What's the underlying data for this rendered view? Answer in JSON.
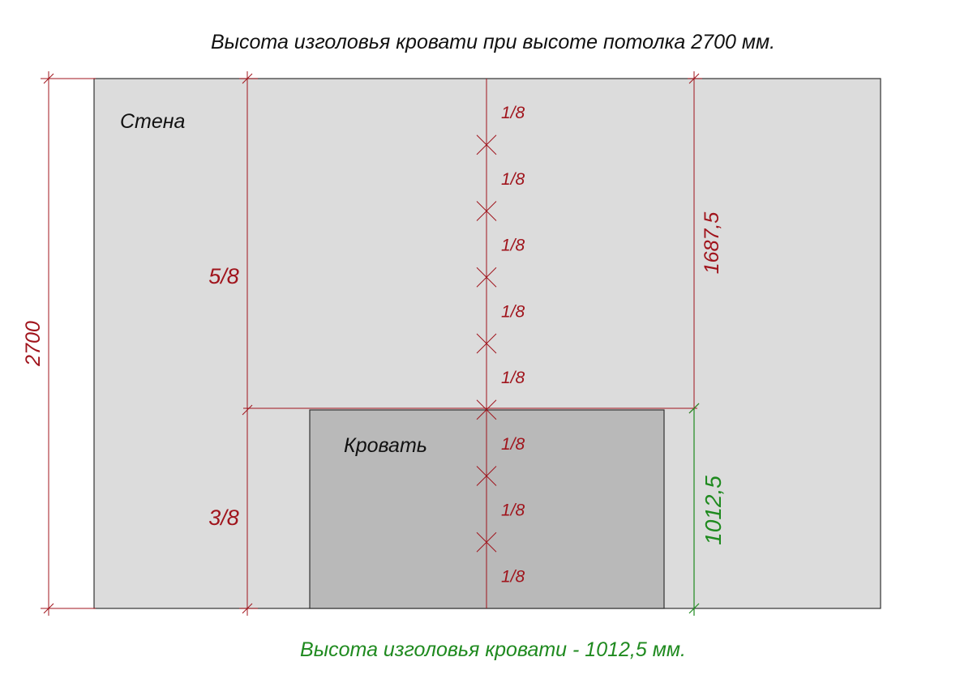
{
  "title": "Высота изголовья кровати при высоте потолка 2700 мм.",
  "footer": "Высота изголовья кровати - 1012,5 мм.",
  "wall_label": "Стена",
  "bed_label": "Кровать",
  "total_height_label": "2700",
  "upper_height_label": "1687,5",
  "headboard_height_label": "1012,5",
  "upper_fraction_label": "5/8",
  "lower_fraction_label": "3/8",
  "segment_fraction_label": "1/8",
  "segment_count": 8,
  "colors": {
    "wall": "#dcdcdc",
    "bed": "#b9b9b9",
    "dimension_red": "#a0141c",
    "dimension_green": "#1f8a1f",
    "outline": "#333333"
  }
}
